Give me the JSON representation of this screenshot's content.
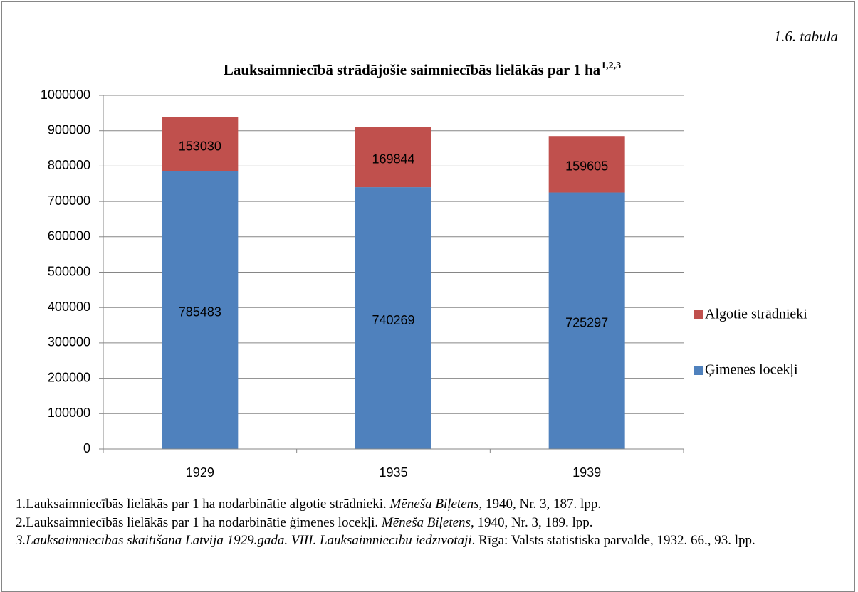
{
  "chart_data": {
    "type": "stacked_bar",
    "table_label": "1.6. tabula",
    "title": "Lauksaimniecībā strādājošie saimniecībās lielākās par 1 ha",
    "title_note": "1,2,3",
    "categories": [
      "1929",
      "1935",
      "1939"
    ],
    "series": [
      {
        "name": "Ģimenes locekļi",
        "color": "#4f81bd",
        "values": [
          785483,
          740269,
          725297
        ]
      },
      {
        "name": "Algotie strādnieki",
        "color": "#c0504d",
        "values": [
          153030,
          169844,
          159605
        ]
      }
    ],
    "ylim": [
      0,
      1000000
    ],
    "yticks": [
      0,
      100000,
      200000,
      300000,
      400000,
      500000,
      600000,
      700000,
      800000,
      900000,
      1000000
    ],
    "grid": true,
    "legend": "right",
    "footnotes": [
      [
        {
          "text": "1.Lauksaimniecībās lielākās par 1 ha nodarbinātie algotie strādnieki. ",
          "italic": false
        },
        {
          "text": "Mēneša Biļetens",
          "italic": true
        },
        {
          "text": ", 1940, Nr. 3, 187. lpp.",
          "italic": false
        }
      ],
      [
        {
          "text": "2.Lauksaimniecībās lielākās par 1 ha nodarbinātie ģimenes locekļi. ",
          "italic": false
        },
        {
          "text": "Mēneša Biļetens",
          "italic": true
        },
        {
          "text": ", 1940, Nr. 3, 189. lpp.",
          "italic": false
        }
      ],
      [
        {
          "text": "3.Lauksaimniecības skaitīšana Latvijā 1929.gadā. VIII. Lauksaimniecību iedzīvotāji",
          "italic": true
        },
        {
          "text": ". Rīga: Valsts statistiskā pārvalde, 1932. 66., 93. lpp.",
          "italic": false
        }
      ]
    ]
  }
}
